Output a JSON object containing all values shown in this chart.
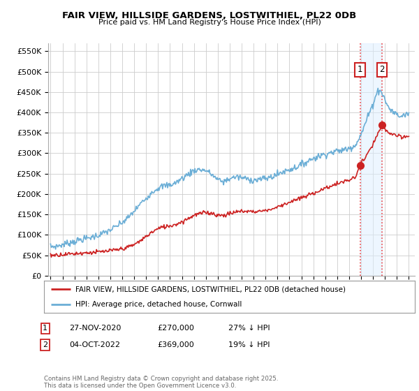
{
  "title": "FAIR VIEW, HILLSIDE GARDENS, LOSTWITHIEL, PL22 0DB",
  "subtitle": "Price paid vs. HM Land Registry's House Price Index (HPI)",
  "ylabel_ticks": [
    "£0",
    "£50K",
    "£100K",
    "£150K",
    "£200K",
    "£250K",
    "£300K",
    "£350K",
    "£400K",
    "£450K",
    "£500K",
    "£550K"
  ],
  "ytick_vals": [
    0,
    50000,
    100000,
    150000,
    200000,
    250000,
    300000,
    350000,
    400000,
    450000,
    500000,
    550000
  ],
  "ylim": [
    0,
    570000
  ],
  "xlim_start": 1994.8,
  "xlim_end": 2025.5,
  "hpi_color": "#6baed6",
  "price_color": "#cc2222",
  "vline_color": "#ee4444",
  "sale1_x": 2020.92,
  "sale1_y": 270000,
  "sale2_x": 2022.76,
  "sale2_y": 369000,
  "shade_color": "#ddeeff",
  "shade_alpha": 0.5,
  "legend_entries": [
    "FAIR VIEW, HILLSIDE GARDENS, LOSTWITHIEL, PL22 0DB (detached house)",
    "HPI: Average price, detached house, Cornwall"
  ],
  "table_rows": [
    {
      "num": "1",
      "date": "27-NOV-2020",
      "price": "£270,000",
      "hpi": "27% ↓ HPI"
    },
    {
      "num": "2",
      "date": "04-OCT-2022",
      "price": "£369,000",
      "hpi": "19% ↓ HPI"
    }
  ],
  "footnote": "Contains HM Land Registry data © Crown copyright and database right 2025.\nThis data is licensed under the Open Government Licence v3.0.",
  "bg_color": "#ffffff",
  "grid_color": "#cccccc",
  "hpi_anchors": [
    [
      1995.0,
      71000
    ],
    [
      1995.5,
      72000
    ],
    [
      1996.0,
      76000
    ],
    [
      1996.5,
      80000
    ],
    [
      1997.0,
      84000
    ],
    [
      1997.5,
      88000
    ],
    [
      1998.0,
      91000
    ],
    [
      1998.5,
      95000
    ],
    [
      1999.0,
      99000
    ],
    [
      1999.5,
      105000
    ],
    [
      2000.0,
      112000
    ],
    [
      2000.5,
      120000
    ],
    [
      2001.0,
      130000
    ],
    [
      2001.5,
      142000
    ],
    [
      2002.0,
      158000
    ],
    [
      2002.5,
      175000
    ],
    [
      2003.0,
      190000
    ],
    [
      2003.5,
      205000
    ],
    [
      2004.0,
      215000
    ],
    [
      2004.5,
      220000
    ],
    [
      2005.0,
      222000
    ],
    [
      2005.5,
      228000
    ],
    [
      2006.0,
      238000
    ],
    [
      2006.5,
      248000
    ],
    [
      2007.0,
      258000
    ],
    [
      2007.5,
      260000
    ],
    [
      2008.0,
      258000
    ],
    [
      2008.5,
      248000
    ],
    [
      2009.0,
      235000
    ],
    [
      2009.5,
      230000
    ],
    [
      2010.0,
      238000
    ],
    [
      2010.5,
      242000
    ],
    [
      2011.0,
      240000
    ],
    [
      2011.5,
      237000
    ],
    [
      2012.0,
      234000
    ],
    [
      2012.5,
      236000
    ],
    [
      2013.0,
      238000
    ],
    [
      2013.5,
      242000
    ],
    [
      2014.0,
      248000
    ],
    [
      2014.5,
      255000
    ],
    [
      2015.0,
      260000
    ],
    [
      2015.5,
      265000
    ],
    [
      2016.0,
      272000
    ],
    [
      2016.5,
      280000
    ],
    [
      2017.0,
      288000
    ],
    [
      2017.5,
      293000
    ],
    [
      2018.0,
      298000
    ],
    [
      2018.5,
      302000
    ],
    [
      2019.0,
      305000
    ],
    [
      2019.5,
      308000
    ],
    [
      2020.0,
      312000
    ],
    [
      2020.5,
      320000
    ],
    [
      2021.0,
      345000
    ],
    [
      2021.5,
      385000
    ],
    [
      2022.0,
      420000
    ],
    [
      2022.25,
      445000
    ],
    [
      2022.5,
      455000
    ],
    [
      2022.75,
      450000
    ],
    [
      2023.0,
      430000
    ],
    [
      2023.25,
      415000
    ],
    [
      2023.5,
      405000
    ],
    [
      2023.75,
      400000
    ],
    [
      2024.0,
      395000
    ],
    [
      2024.25,
      390000
    ],
    [
      2024.5,
      392000
    ],
    [
      2024.75,
      395000
    ],
    [
      2025.0,
      398000
    ]
  ],
  "price_anchors": [
    [
      1995.0,
      50000
    ],
    [
      1995.5,
      51000
    ],
    [
      1996.0,
      52000
    ],
    [
      1996.5,
      53000
    ],
    [
      1997.0,
      54000
    ],
    [
      1997.5,
      55000
    ],
    [
      1998.0,
      56000
    ],
    [
      1998.5,
      57000
    ],
    [
      1999.0,
      58000
    ],
    [
      1999.5,
      59000
    ],
    [
      2000.0,
      61000
    ],
    [
      2000.5,
      63000
    ],
    [
      2001.0,
      66000
    ],
    [
      2001.5,
      70000
    ],
    [
      2002.0,
      76000
    ],
    [
      2002.5,
      85000
    ],
    [
      2003.0,
      96000
    ],
    [
      2003.5,
      107000
    ],
    [
      2004.0,
      115000
    ],
    [
      2004.5,
      120000
    ],
    [
      2005.0,
      122000
    ],
    [
      2005.5,
      126000
    ],
    [
      2006.0,
      132000
    ],
    [
      2006.5,
      140000
    ],
    [
      2007.0,
      148000
    ],
    [
      2007.5,
      152000
    ],
    [
      2008.0,
      155000
    ],
    [
      2008.5,
      153000
    ],
    [
      2009.0,
      148000
    ],
    [
      2009.5,
      148000
    ],
    [
      2010.0,
      152000
    ],
    [
      2010.5,
      156000
    ],
    [
      2011.0,
      158000
    ],
    [
      2011.5,
      158000
    ],
    [
      2012.0,
      157000
    ],
    [
      2012.5,
      158000
    ],
    [
      2013.0,
      160000
    ],
    [
      2013.5,
      163000
    ],
    [
      2014.0,
      168000
    ],
    [
      2014.5,
      175000
    ],
    [
      2015.0,
      180000
    ],
    [
      2015.5,
      185000
    ],
    [
      2016.0,
      190000
    ],
    [
      2016.5,
      196000
    ],
    [
      2017.0,
      202000
    ],
    [
      2017.5,
      208000
    ],
    [
      2018.0,
      214000
    ],
    [
      2018.5,
      220000
    ],
    [
      2019.0,
      225000
    ],
    [
      2019.5,
      230000
    ],
    [
      2020.0,
      234000
    ],
    [
      2020.5,
      240000
    ],
    [
      2020.92,
      270000
    ],
    [
      2021.0,
      278000
    ],
    [
      2021.25,
      285000
    ],
    [
      2021.5,
      295000
    ],
    [
      2021.75,
      308000
    ],
    [
      2022.0,
      322000
    ],
    [
      2022.25,
      338000
    ],
    [
      2022.5,
      352000
    ],
    [
      2022.76,
      369000
    ],
    [
      2023.0,
      358000
    ],
    [
      2023.25,
      352000
    ],
    [
      2023.5,
      348000
    ],
    [
      2023.75,
      345000
    ],
    [
      2024.0,
      342000
    ],
    [
      2024.25,
      340000
    ],
    [
      2024.5,
      338000
    ],
    [
      2024.75,
      340000
    ],
    [
      2025.0,
      343000
    ]
  ]
}
